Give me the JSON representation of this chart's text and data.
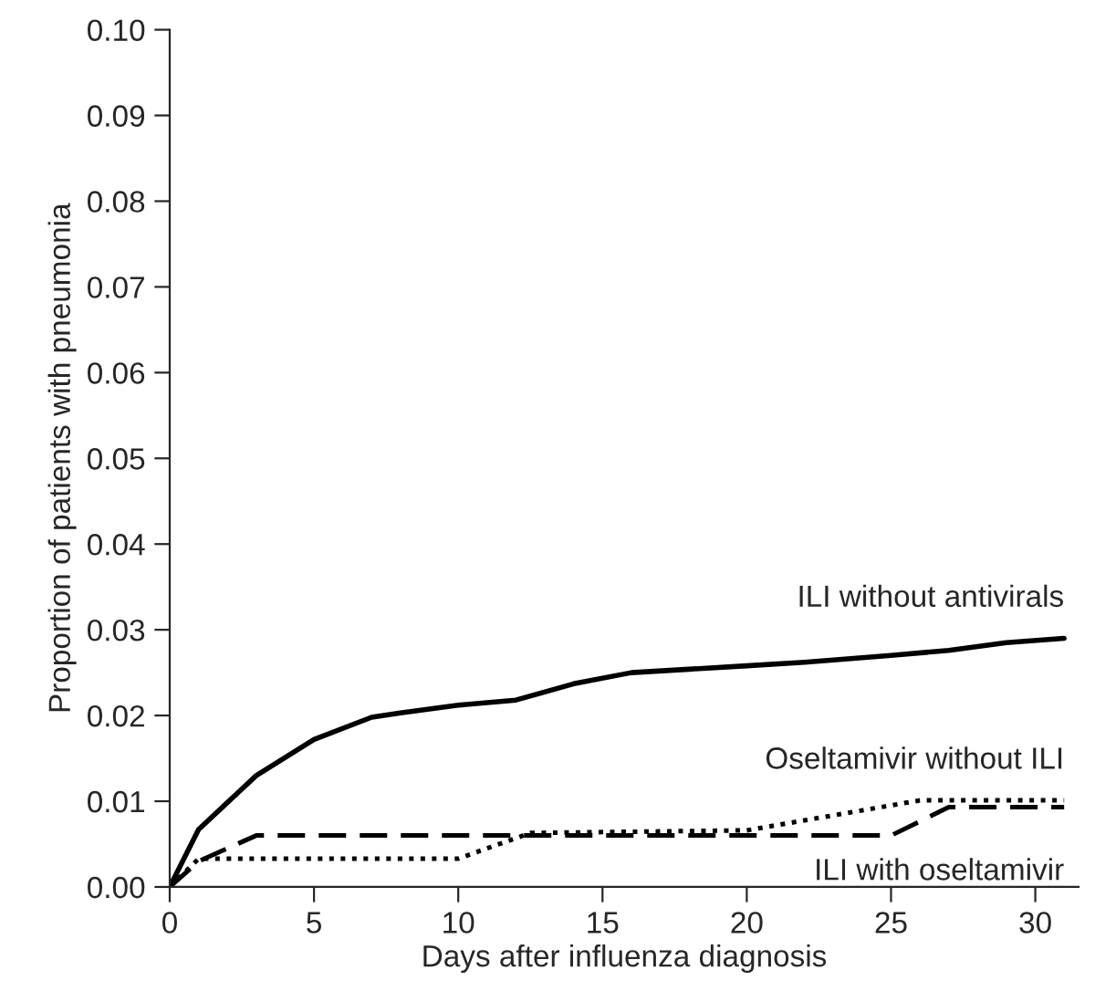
{
  "chart_data": {
    "type": "line",
    "xlabel": "Days after influenza diagnosis",
    "ylabel": "Proportion of patients with pneumonia",
    "series": [
      {
        "name": "ILI without antivirals",
        "color": "#000000",
        "line_style": "solid",
        "x": [
          0,
          1,
          3,
          5,
          7,
          8,
          10,
          12,
          14,
          16,
          18,
          20,
          22,
          25,
          27,
          29,
          31
        ],
        "values": [
          0,
          0.0067,
          0.013,
          0.0172,
          0.0198,
          0.0203,
          0.0212,
          0.0218,
          0.0237,
          0.025,
          0.0254,
          0.0258,
          0.0262,
          0.027,
          0.0276,
          0.0285,
          0.029
        ]
      },
      {
        "name": "Oseltamivir without ILI",
        "color": "#000000",
        "line_style": "dotted",
        "x": [
          0,
          1,
          10,
          12.5,
          20,
          26,
          31
        ],
        "values": [
          0,
          0.0033,
          0.0033,
          0.0063,
          0.0066,
          0.0101,
          0.0101
        ]
      },
      {
        "name": "ILI with oseltamivir",
        "color": "#000000",
        "line_style": "dashed",
        "x": [
          0,
          1,
          3,
          25,
          27,
          31
        ],
        "values": [
          0,
          0.003,
          0.006,
          0.006,
          0.0093,
          0.0093
        ]
      }
    ],
    "xlim": [
      0,
      31.5
    ],
    "xticks": [
      0,
      5,
      10,
      15,
      20,
      25,
      30
    ],
    "ylim": [
      0,
      0.1
    ],
    "yticks": [
      {
        "value": 0,
        "label": "0.00"
      },
      {
        "value": 0.01,
        "label": "0.01"
      },
      {
        "value": 0.02,
        "label": "0.02"
      },
      {
        "value": 0.03,
        "label": "0.03"
      },
      {
        "value": 0.04,
        "label": "0.04"
      },
      {
        "value": 0.05,
        "label": "0.05"
      },
      {
        "value": 0.06,
        "label": "0.06"
      },
      {
        "value": 0.07,
        "label": "0.07"
      },
      {
        "value": 0.08,
        "label": "0.08"
      },
      {
        "value": 0.09,
        "label": "0.09"
      },
      {
        "value": 0.1,
        "label": "0.10"
      }
    ],
    "grid": false,
    "legend": false,
    "marker": "none"
  }
}
